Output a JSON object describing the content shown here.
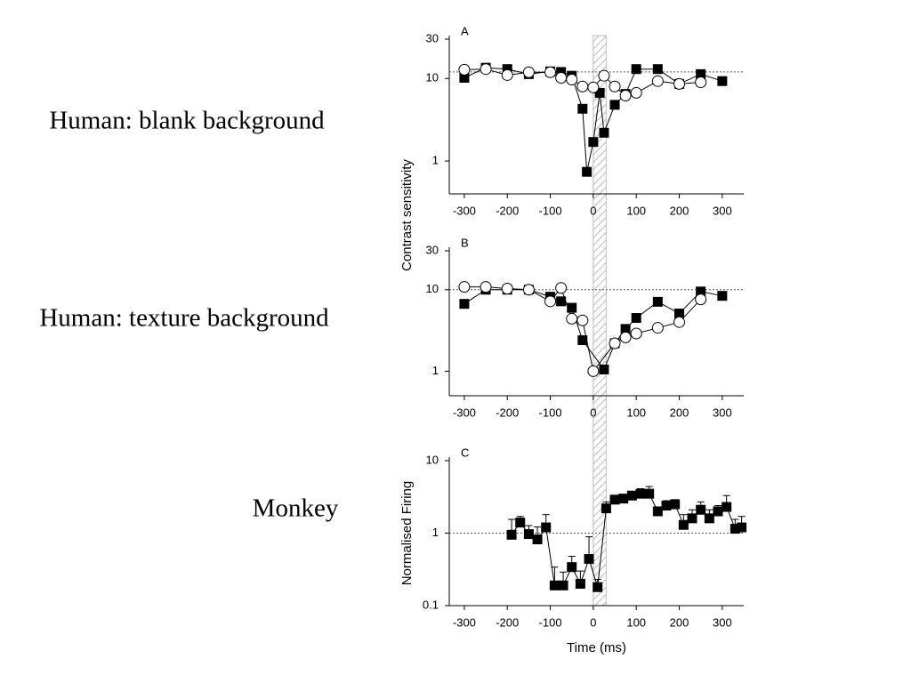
{
  "slide_labels": [
    "Human: blank background",
    "Human: texture background",
    "Monkey"
  ],
  "shaded_region": [
    0,
    30
  ],
  "chart_data": [
    {
      "type": "line",
      "panel_label": "A",
      "ylabel": "Contrast sensitivity",
      "log_y": true,
      "xlim": [
        -335,
        350
      ],
      "xticks": [
        -300,
        -200,
        -100,
        0,
        100,
        200,
        300
      ],
      "ylim": [
        0.4,
        30
      ],
      "yticks": [
        1,
        10,
        30
      ],
      "ref_line": 12,
      "series": [
        {
          "marker": "square",
          "color": "#000000",
          "x": [
            -300,
            -250,
            -200,
            -150,
            -100,
            -75,
            -50,
            -25,
            -15,
            0,
            15,
            25,
            50,
            75,
            100,
            150,
            200,
            250,
            300
          ],
          "values": [
            10.2,
            13.5,
            13,
            11.3,
            12.2,
            12,
            10.8,
            4.3,
            0.74,
            1.7,
            6.7,
            2.2,
            4.8,
            6.5,
            13,
            13,
            8.6,
            11.3,
            9.3
          ]
        },
        {
          "marker": "circle",
          "color": "#ffffff",
          "x": [
            -300,
            -250,
            -200,
            -150,
            -100,
            -75,
            -50,
            -25,
            0,
            25,
            50,
            75,
            100,
            150,
            200,
            250
          ],
          "values": [
            12.8,
            13,
            11,
            11.9,
            11.9,
            10.2,
            9.7,
            8,
            7.8,
            10.8,
            8,
            6.2,
            6.7,
            9.3,
            8.6,
            9
          ]
        }
      ]
    },
    {
      "type": "line",
      "panel_label": "B",
      "log_y": true,
      "xlim": [
        -335,
        350
      ],
      "xticks": [
        -300,
        -200,
        -100,
        0,
        100,
        200,
        300
      ],
      "ylim": [
        0.5,
        30
      ],
      "yticks": [
        1,
        10,
        30
      ],
      "ref_line": 10,
      "series": [
        {
          "marker": "square",
          "color": "#000000",
          "x": [
            -300,
            -250,
            -200,
            -150,
            -100,
            -75,
            -50,
            -25,
            25,
            50,
            75,
            100,
            150,
            200,
            250,
            300
          ],
          "values": [
            6.7,
            10,
            10,
            10,
            8.2,
            7.2,
            6,
            2.4,
            1.05,
            2.2,
            3.3,
            4.5,
            7.1,
            5.1,
            9.5,
            8.4
          ]
        },
        {
          "marker": "circle",
          "color": "#ffffff",
          "x": [
            -300,
            -250,
            -200,
            -150,
            -100,
            -75,
            -50,
            -25,
            0,
            50,
            75,
            100,
            150,
            200,
            250
          ],
          "values": [
            10.8,
            10.8,
            10.3,
            10,
            7.2,
            10.5,
            4.4,
            4.2,
            1.0,
            2.2,
            2.6,
            2.9,
            3.4,
            4.0,
            7.6
          ]
        }
      ]
    },
    {
      "type": "line",
      "panel_label": "C",
      "ylabel": "Normalised Firing",
      "xlabel": "Time (ms)",
      "log_y": true,
      "xlim": [
        -335,
        350
      ],
      "xticks": [
        -300,
        -200,
        -100,
        0,
        100,
        200,
        300
      ],
      "ylim": [
        0.1,
        10
      ],
      "yticks": [
        0.1,
        1,
        10
      ],
      "ref_line": 1,
      "series": [
        {
          "marker": "square",
          "color": "#000000",
          "x": [
            -190,
            -170,
            -150,
            -130,
            -110,
            -90,
            -70,
            -50,
            -30,
            -10,
            10,
            30,
            50,
            70,
            90,
            110,
            130,
            150,
            170,
            190,
            210,
            230,
            250,
            270,
            290,
            310,
            330,
            345
          ],
          "values": [
            0.95,
            1.4,
            0.97,
            0.82,
            1.2,
            0.19,
            0.19,
            0.34,
            0.2,
            0.44,
            0.18,
            2.2,
            2.9,
            3.0,
            3.3,
            3.5,
            3.5,
            2.0,
            2.4,
            2.5,
            1.3,
            1.6,
            2.1,
            1.6,
            2.0,
            2.3,
            1.15,
            1.2
          ],
          "errors": [
            0.6,
            0.3,
            0.3,
            0.4,
            0.6,
            0.15,
            0.1,
            0.14,
            0.1,
            0.45,
            0.05,
            0.5,
            0.3,
            0.3,
            0.3,
            0.6,
            0.9,
            0.3,
            0.4,
            0.4,
            0.5,
            0.5,
            0.6,
            0.5,
            0.4,
            1.0,
            0.4,
            0.5
          ]
        }
      ]
    }
  ]
}
